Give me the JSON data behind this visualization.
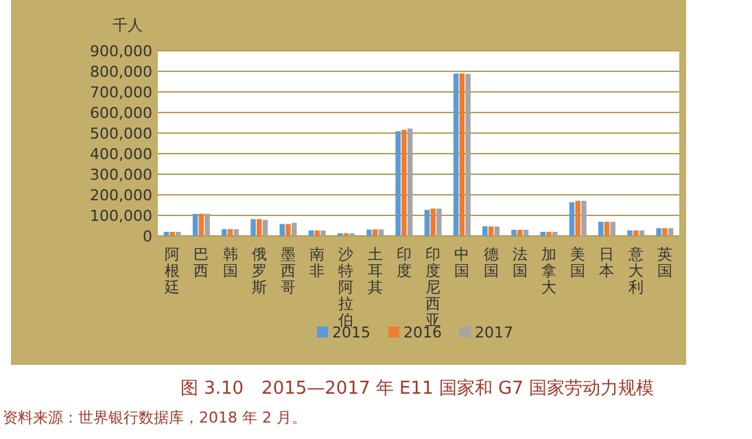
{
  "chart_data": {
    "type": "bar",
    "title": "图 3.10　2015—2017 年 E11 国家和 G7 国家劳动力规模",
    "ylabel": "千人",
    "annotations": [
      "资料来源：世界银行数据库，2018 年 2 月。"
    ],
    "categories": [
      "阿根廷",
      "巴西",
      "韩国",
      "俄罗斯",
      "墨西哥",
      "南非",
      "沙特阿拉伯",
      "土耳其",
      "印度",
      "印度尼西亚",
      "中国",
      "德国",
      "法国",
      "加拿大",
      "美国",
      "日本",
      "意大利",
      "英国"
    ],
    "series": [
      {
        "name": "2015",
        "color": "#5b9bd5",
        "values": [
          20000,
          107000,
          33000,
          82000,
          58000,
          27000,
          13000,
          31000,
          509000,
          127000,
          789000,
          47000,
          30000,
          20000,
          164000,
          69000,
          27000,
          38000
        ]
      },
      {
        "name": "2016",
        "color": "#ed7d31",
        "values": [
          20000,
          108000,
          33000,
          82000,
          58000,
          27000,
          13000,
          32000,
          516000,
          133000,
          790000,
          46000,
          30000,
          20000,
          171000,
          69000,
          27000,
          38000
        ]
      },
      {
        "name": "2017",
        "color": "#a5a5a5",
        "values": [
          20000,
          108000,
          33000,
          78000,
          64000,
          27000,
          13000,
          32000,
          522000,
          133000,
          788000,
          46000,
          30000,
          20000,
          171000,
          69000,
          27000,
          38000
        ]
      }
    ],
    "ylim": [
      0,
      900000
    ],
    "yticks": [
      {
        "value": 0,
        "label": "0"
      },
      {
        "value": 100000,
        "label": "100,000"
      },
      {
        "value": 200000,
        "label": "200,000"
      },
      {
        "value": 300000,
        "label": "300,000"
      },
      {
        "value": 400000,
        "label": "400,000"
      },
      {
        "value": 500000,
        "label": "500,000"
      },
      {
        "value": 600000,
        "label": "600,000"
      },
      {
        "value": 700000,
        "label": "700,000"
      },
      {
        "value": 800000,
        "label": "800,000"
      },
      {
        "value": 900000,
        "label": "900,000"
      }
    ],
    "grid": "y",
    "legend": "bottom"
  }
}
